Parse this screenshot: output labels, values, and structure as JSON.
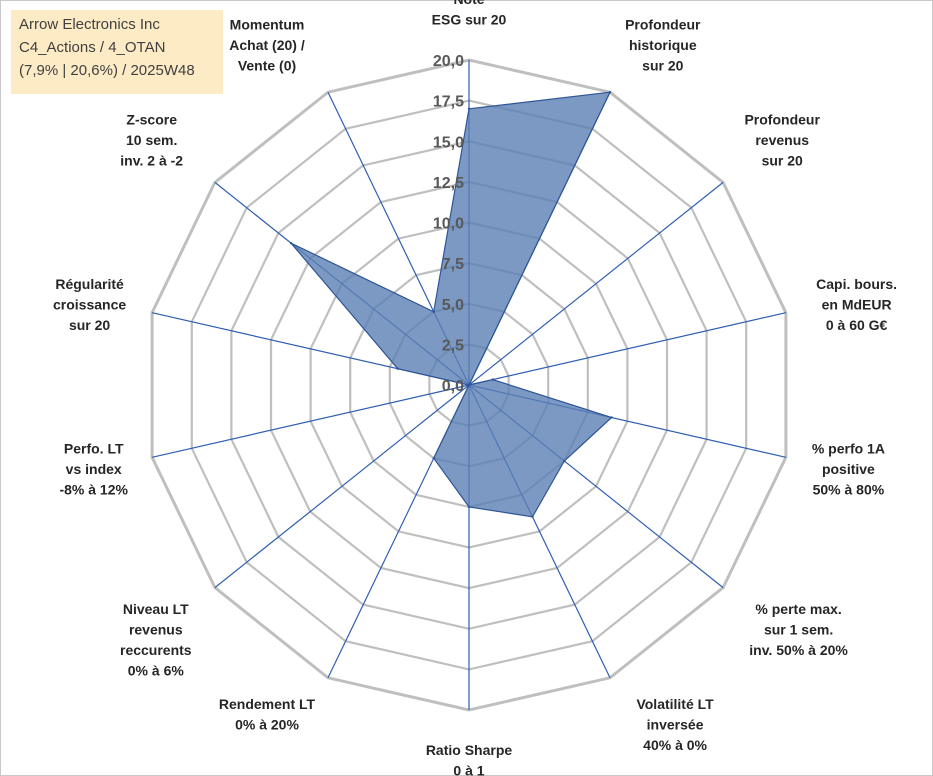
{
  "info": {
    "line1": "Arrow Electronics Inc",
    "line2": "C4_Actions / 4_OTAN",
    "line3": "(7,9% | 20,6%) / 2025W48"
  },
  "colors": {
    "fill": "#5b80b4",
    "stroke": "#2f5597",
    "spoke": "#2f5fb0",
    "grid": "#bfbfbf",
    "info_bg": "#fdebc6"
  },
  "chart_data": {
    "type": "radar",
    "title": "",
    "rmin": 0,
    "rmax": 20,
    "tick_step": 2.5,
    "tick_labels": [
      "0,0",
      "2,5",
      "5,0",
      "7,5",
      "10,0",
      "12,5",
      "15,0",
      "17,5",
      "20,0"
    ],
    "axes": [
      {
        "lines": [
          "Note",
          "ESG sur 20"
        ]
      },
      {
        "lines": [
          "Profondeur",
          "historique",
          "sur 20"
        ]
      },
      {
        "lines": [
          "Profondeur",
          "revenus",
          "sur 20"
        ]
      },
      {
        "lines": [
          "Capi. bours.",
          "en MdEUR",
          "0 à 60 G€"
        ]
      },
      {
        "lines": [
          "% perfo 1A",
          "positive",
          "50% à 80%"
        ]
      },
      {
        "lines": [
          "% perte max.",
          "sur 1 sem.",
          "inv. 50% à 20%"
        ]
      },
      {
        "lines": [
          "Volatilité LT",
          "inversée",
          "40% à 0%"
        ]
      },
      {
        "lines": [
          "Ratio Sharpe",
          "0 à 1"
        ]
      },
      {
        "lines": [
          "Rendement LT",
          "0% à 20%"
        ]
      },
      {
        "lines": [
          "Niveau LT",
          "revenus",
          "reccurents",
          "0% à 6%"
        ]
      },
      {
        "lines": [
          "Perfo. LT",
          "vs index",
          "-8% à 12%"
        ]
      },
      {
        "lines": [
          "Régularité",
          "croissance",
          "sur 20"
        ]
      },
      {
        "lines": [
          "Z-score",
          "10 sem.",
          "inv. 2 à -2"
        ]
      },
      {
        "lines": [
          "Momentum",
          "Achat (20) /",
          "Vente (0)"
        ]
      }
    ],
    "series": [
      {
        "name": "Arrow Electronics Inc",
        "values": [
          17.0,
          20.0,
          0.0,
          1.5,
          9.0,
          7.5,
          9.0,
          7.5,
          5.0,
          0.0,
          0.0,
          4.5,
          14.0,
          5.0
        ]
      }
    ]
  }
}
